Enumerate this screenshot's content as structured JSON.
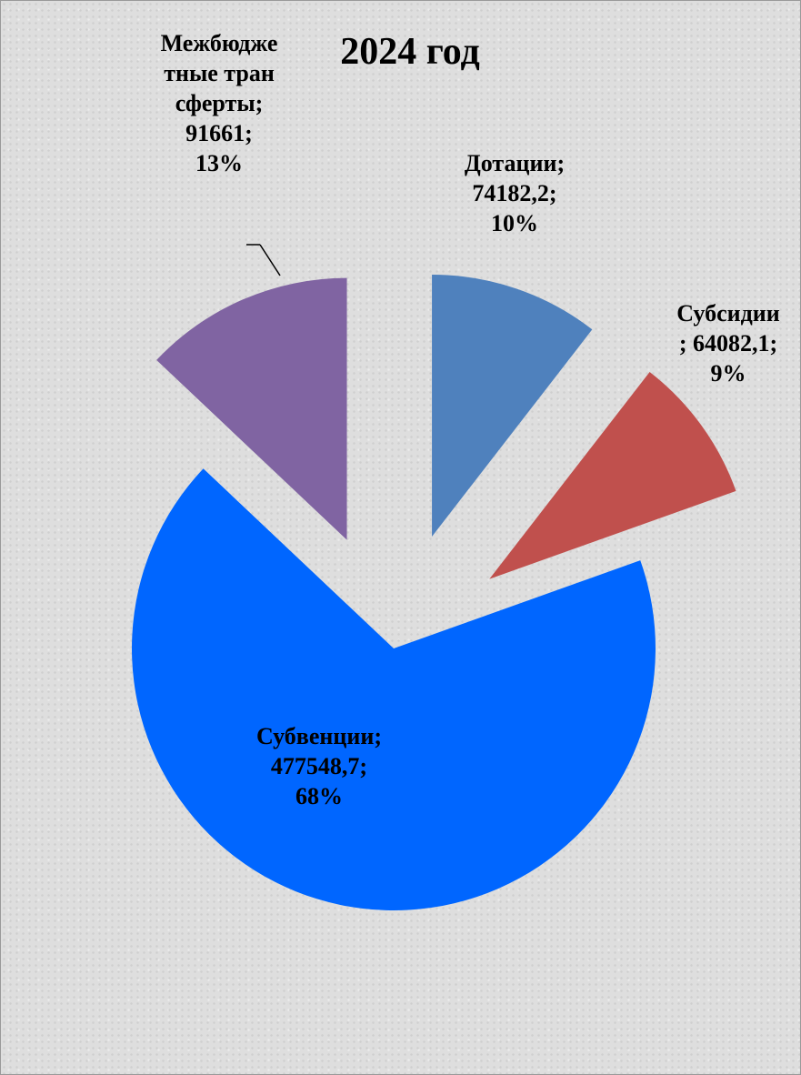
{
  "chart_data": {
    "type": "pie",
    "title": "2024 год",
    "categories": [
      "Дотации",
      "Субсидии",
      "Субвенции",
      "Межбюджетные трансферты"
    ],
    "values": [
      74182.2,
      64082.1,
      477548.7,
      91661
    ],
    "value_labels": [
      "74182,2",
      "64082,1",
      "477548,7",
      "91661"
    ],
    "percents": [
      10,
      9,
      68,
      13
    ],
    "percent_labels": [
      "10%",
      "9%",
      "68%",
      "13%"
    ],
    "separator": ";",
    "colors": [
      "#4f81bd",
      "#c0504d",
      "#0066ff",
      "#8064a2"
    ]
  }
}
